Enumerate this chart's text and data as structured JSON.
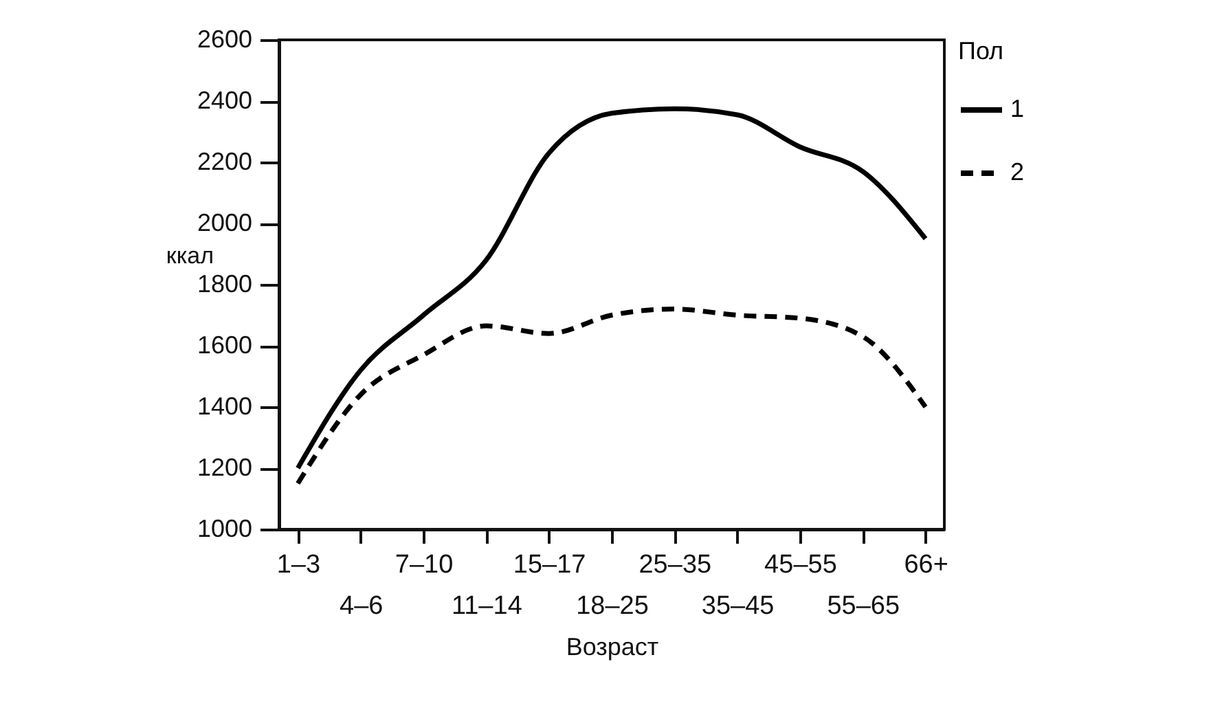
{
  "chart_data": {
    "type": "line",
    "xlabel": "Возраст",
    "ylabel": "ккал",
    "legend_title": "Пол",
    "categories": [
      "1–3",
      "4–6",
      "7–10",
      "11–14",
      "15–17",
      "18–25",
      "25–35",
      "35–45",
      "45–55",
      "55–65",
      "66+"
    ],
    "series": [
      {
        "name": "1",
        "color": "#000000",
        "line_style": "solid",
        "values": [
          1200,
          1520,
          1700,
          1880,
          2230,
          2360,
          2375,
          2355,
          2250,
          2170,
          1950
        ]
      },
      {
        "name": "2",
        "color": "#000000",
        "line_style": "dashed",
        "values": [
          1150,
          1440,
          1570,
          1665,
          1640,
          1700,
          1720,
          1700,
          1690,
          1630,
          1400
        ]
      }
    ],
    "ylim": [
      1000,
      2600
    ],
    "yticks": [
      1000,
      1200,
      1400,
      1600,
      1800,
      2000,
      2200,
      2400,
      2600
    ],
    "grid": false,
    "legend": "right",
    "marker": "none"
  }
}
